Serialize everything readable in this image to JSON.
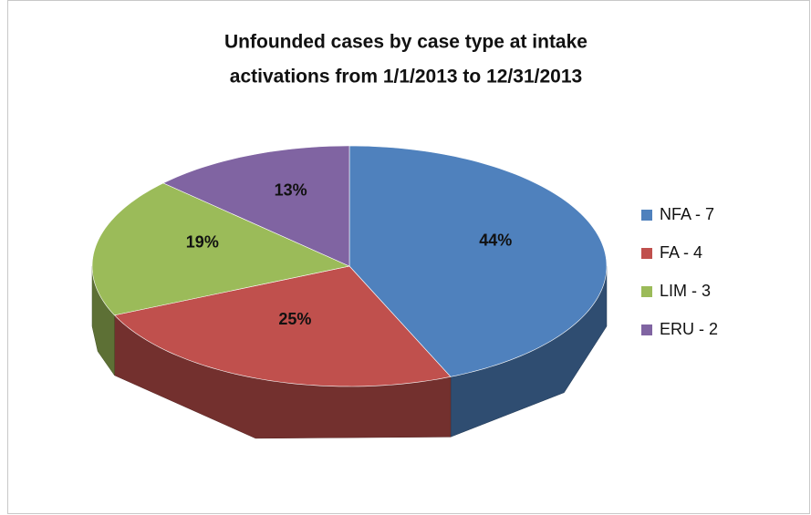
{
  "chart_data": {
    "type": "pie3d",
    "title": [
      "Unfounded cases by case type at intake",
      "activations from 1/1/2013 to 12/31/2013"
    ],
    "categories": [
      "NFA - 7",
      "FA - 4",
      "LIM - 3",
      "ERU - 2"
    ],
    "values": [
      44,
      25,
      19,
      13
    ],
    "value_labels": [
      "44%",
      "25%",
      "19%",
      "13%"
    ],
    "colors": [
      "#4f81bd",
      "#c0504d",
      "#9bbb59",
      "#8064a2"
    ],
    "legend": "right"
  }
}
